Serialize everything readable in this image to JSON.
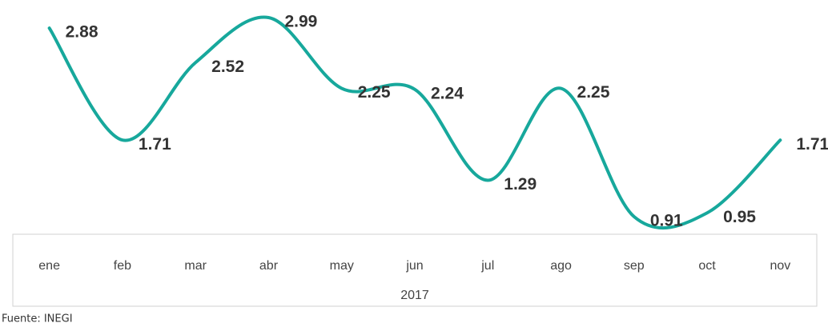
{
  "chart_data": {
    "type": "line",
    "categories": [
      "ene",
      "feb",
      "mar",
      "abr",
      "may",
      "jun",
      "jul",
      "ago",
      "sep",
      "oct",
      "nov"
    ],
    "group_label": "2017",
    "values": [
      2.88,
      1.71,
      2.52,
      2.99,
      2.25,
      2.24,
      1.29,
      2.25,
      0.91,
      0.95,
      1.71
    ],
    "color": "#17a89c",
    "source": "Fuente: INEGI"
  }
}
